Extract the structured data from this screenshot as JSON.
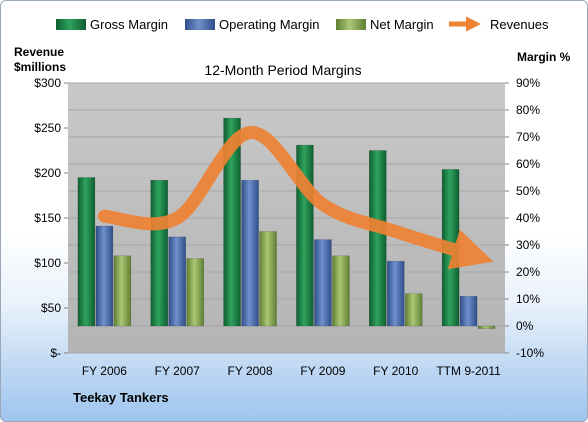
{
  "chart_data": {
    "type": "bar",
    "title": "12-Month Period Margins",
    "company": "Teekay Tankers",
    "categories": [
      "FY 2006",
      "FY 2007",
      "FY 2008",
      "FY 2009",
      "FY 2010",
      "TTM 9-2011"
    ],
    "left_axis": {
      "label_line1": "Revenue",
      "label_line2": "$millions",
      "ticks": [
        "$300",
        "$250",
        "$200",
        "$150",
        "$100",
        "$50",
        "$-"
      ],
      "range": [
        0,
        300
      ]
    },
    "right_axis": {
      "label": "Margin %",
      "ticks": [
        "90%",
        "80%",
        "70%",
        "60%",
        "50%",
        "40%",
        "30%",
        "20%",
        "10%",
        "0%",
        "-10%"
      ],
      "range": [
        -10,
        90
      ]
    },
    "series": [
      {
        "name": "Gross Margin",
        "axis": "right",
        "kind": "bar",
        "values": [
          55,
          54,
          77,
          67,
          65,
          58
        ]
      },
      {
        "name": "Operating Margin",
        "axis": "right",
        "kind": "bar",
        "values": [
          37,
          33,
          54,
          32,
          24,
          11
        ]
      },
      {
        "name": "Net Margin",
        "axis": "right",
        "kind": "bar",
        "values": [
          26,
          25,
          35,
          26,
          12,
          -1
        ]
      },
      {
        "name": "Revenues",
        "axis": "left",
        "kind": "line",
        "values": [
          152,
          150,
          245,
          165,
          135,
          110
        ]
      }
    ],
    "colors": {
      "gross": "#1e8a4a",
      "operating": "#4f72b3",
      "net": "#8fb158",
      "revenue": "#ee8233",
      "plot_bg": "#bfbfbf"
    },
    "grid": true,
    "legend_position": "top"
  }
}
